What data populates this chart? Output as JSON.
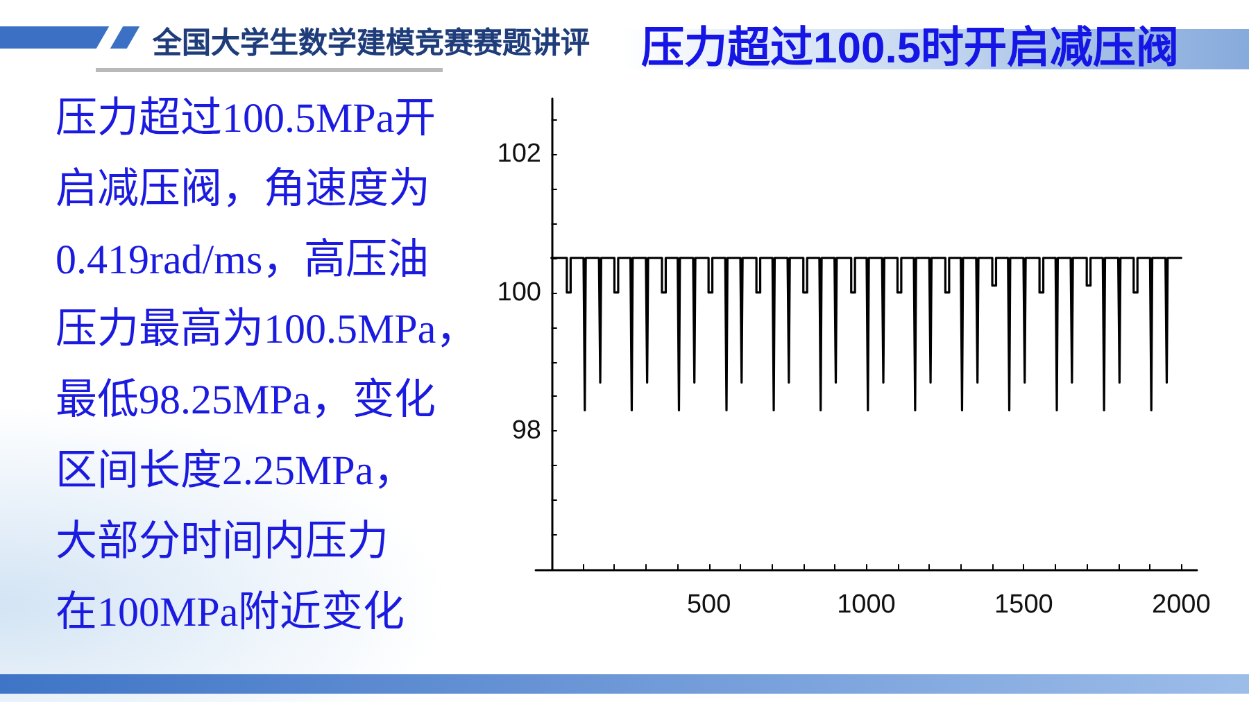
{
  "chart_data": {
    "type": "line",
    "title": "压力超过100.5时开启减压阀",
    "subtitle": "全国大学生数学建模竞赛赛题讲评",
    "annotations": [
      "压力超过100.5MPa开",
      "启减压阀，角速度为",
      "0.419rad/ms，高压油",
      "压力最高为100.5MPa，",
      "最低98.25MPa，变化",
      "区间长度2.25MPa，",
      "大部分时间内压力",
      "在100MPa附近变化"
    ],
    "x": [
      0,
      49,
      49,
      61,
      61,
      102,
      106,
      109,
      151,
      155,
      158,
      200,
      200,
      212,
      212,
      251,
      255,
      258,
      300,
      304,
      307,
      351,
      351,
      363,
      363,
      401,
      405,
      408,
      450,
      454,
      457,
      499,
      499,
      511,
      511,
      552,
      556,
      559,
      600,
      604,
      607,
      651,
      651,
      663,
      663,
      702,
      706,
      709,
      750,
      754,
      757,
      800,
      800,
      812,
      812,
      851,
      855,
      858,
      899,
      903,
      906,
      952,
      952,
      964,
      964,
      1001,
      1005,
      1008,
      1050,
      1054,
      1057,
      1099,
      1099,
      1111,
      1111,
      1151,
      1155,
      1158,
      1200,
      1204,
      1207,
      1251,
      1251,
      1263,
      1263,
      1300,
      1304,
      1307,
      1349,
      1353,
      1356,
      1400,
      1400,
      1412,
      1412,
      1450,
      1454,
      1457,
      1499,
      1503,
      1506,
      1550,
      1550,
      1562,
      1562,
      1601,
      1605,
      1608,
      1649,
      1653,
      1656,
      1700,
      1700,
      1712,
      1712,
      1751,
      1755,
      1758,
      1800,
      1804,
      1807,
      1849,
      1849,
      1861,
      1861,
      1901,
      1905,
      1908,
      1950,
      1954,
      1957,
      2000
    ],
    "series": [
      {
        "color": "#000000",
        "values": [
          100.5,
          100.5,
          100,
          100,
          100.5,
          100.5,
          98.3,
          100.5,
          100.5,
          98.7,
          100.5,
          100.5,
          100,
          100,
          100.5,
          100.5,
          98.3,
          100.5,
          100.5,
          98.7,
          100.5,
          100.5,
          100,
          100,
          100.5,
          100.5,
          98.3,
          100.5,
          100.5,
          98.7,
          100.5,
          100.5,
          100,
          100,
          100.5,
          100.5,
          98.3,
          100.5,
          100.5,
          98.7,
          100.5,
          100.5,
          100,
          100,
          100.5,
          100.5,
          98.3,
          100.5,
          100.5,
          98.7,
          100.5,
          100.5,
          100,
          100,
          100.5,
          100.5,
          98.3,
          100.5,
          100.5,
          98.7,
          100.5,
          100.5,
          100,
          100,
          100.5,
          100.5,
          98.3,
          100.5,
          100.5,
          98.7,
          100.5,
          100.5,
          100,
          100,
          100.5,
          100.5,
          98.3,
          100.5,
          100.5,
          98.7,
          100.5,
          100.5,
          100,
          100,
          100.5,
          100.5,
          98.3,
          100.5,
          100.5,
          98.7,
          100.5,
          100.5,
          100.1,
          100.1,
          100.5,
          100.5,
          98.3,
          100.5,
          100.5,
          98.7,
          100.5,
          100.5,
          100,
          100,
          100.5,
          100.5,
          98.3,
          100.5,
          100.5,
          98.7,
          100.5,
          100.5,
          100.1,
          100.1,
          100.5,
          100.5,
          98.3,
          100.5,
          100.5,
          98.7,
          100.5,
          100.5,
          100,
          100,
          100.5,
          100.5,
          98.3,
          100.5,
          100.5,
          98.7,
          100.5,
          100.5
        ]
      }
    ],
    "xlim": [
      -50,
      2050
    ],
    "ylim": [
      96,
      102.8
    ],
    "xticks": [
      {
        "value": 100,
        "label": null
      },
      {
        "value": 200,
        "label": null
      },
      {
        "value": 300,
        "label": null
      },
      {
        "value": 400,
        "label": null
      },
      500,
      {
        "value": 600,
        "label": null
      },
      {
        "value": 700,
        "label": null
      },
      {
        "value": 800,
        "label": null
      },
      {
        "value": 900,
        "label": null
      },
      1000,
      {
        "value": 1100,
        "label": null
      },
      {
        "value": 1200,
        "label": null
      },
      {
        "value": 1300,
        "label": null
      },
      {
        "value": 1400,
        "label": null
      },
      1500,
      {
        "value": 1600,
        "label": null
      },
      {
        "value": 1700,
        "label": null
      },
      {
        "value": 1800,
        "label": null
      },
      {
        "value": 1900,
        "label": null
      },
      2000
    ],
    "yticks": [
      {
        "value": 96.5,
        "label": null
      },
      {
        "value": 97,
        "label": null
      },
      {
        "value": 97.5,
        "label": null
      },
      98,
      {
        "value": 98.5,
        "label": null
      },
      {
        "value": 99,
        "label": null
      },
      {
        "value": 99.5,
        "label": null
      },
      100,
      {
        "value": 100.5,
        "label": null
      },
      {
        "value": 101,
        "label": null
      },
      {
        "value": 101.5,
        "label": null
      },
      102,
      {
        "value": 102.5,
        "label": null
      }
    ],
    "marker": "none",
    "line_style": "solid"
  }
}
